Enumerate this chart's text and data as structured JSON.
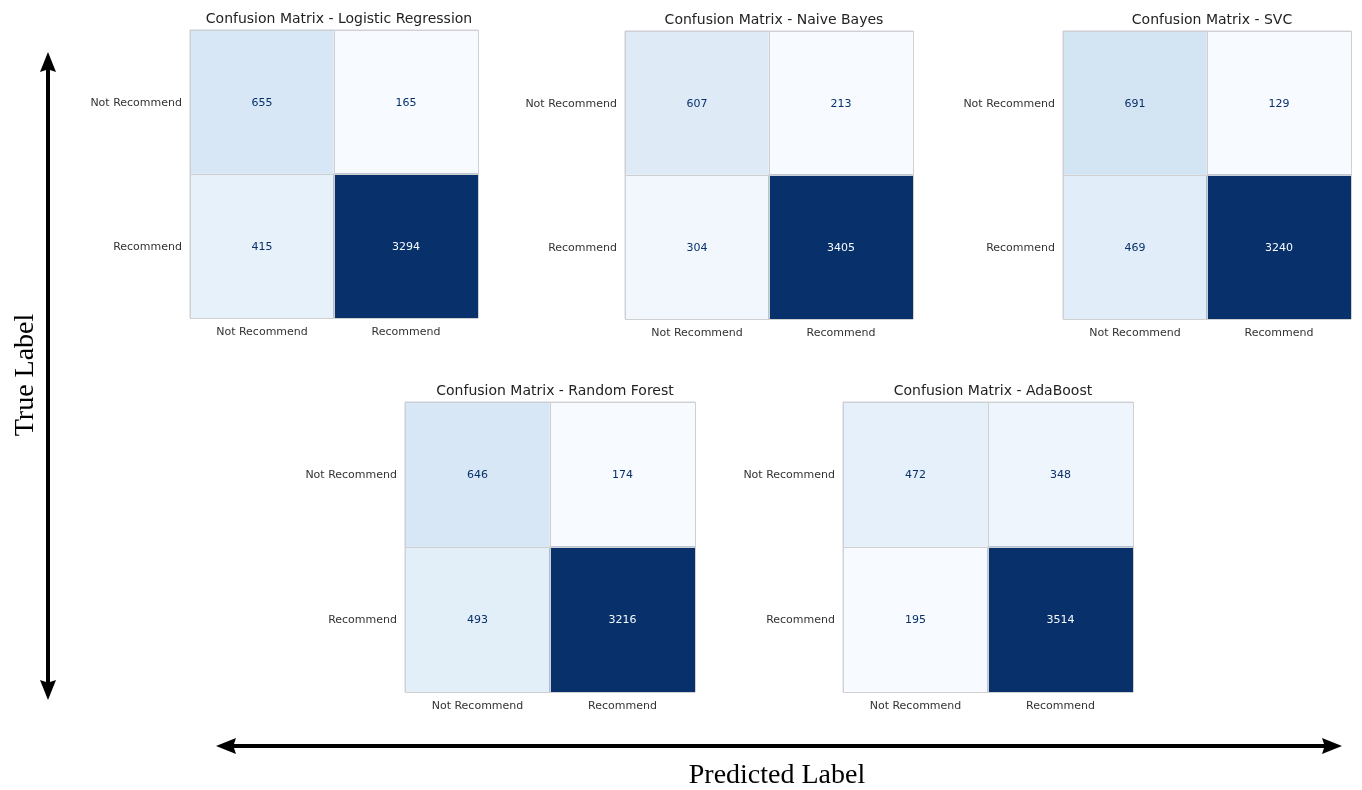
{
  "chart_data": [
    {
      "type": "heatmap",
      "title": "Confusion Matrix - Logistic Regression",
      "categories": [
        "Not Recommend",
        "Recommend"
      ],
      "y_categories": [
        "Not Recommend",
        "Recommend"
      ],
      "cells": [
        [
          655,
          165
        ],
        [
          415,
          3294
        ]
      ],
      "data_labels": true,
      "grid": true
    },
    {
      "type": "heatmap",
      "title": "Confusion Matrix - Naive Bayes",
      "categories": [
        "Not Recommend",
        "Recommend"
      ],
      "y_categories": [
        "Not Recommend",
        "Recommend"
      ],
      "cells": [
        [
          607,
          213
        ],
        [
          304,
          3405
        ]
      ],
      "data_labels": true,
      "grid": true
    },
    {
      "type": "heatmap",
      "title": "Confusion Matrix - SVC",
      "categories": [
        "Not Recommend",
        "Recommend"
      ],
      "y_categories": [
        "Not Recommend",
        "Recommend"
      ],
      "cells": [
        [
          691,
          129
        ],
        [
          469,
          3240
        ]
      ],
      "data_labels": true,
      "grid": true
    },
    {
      "type": "heatmap",
      "title": "Confusion Matrix - Random Forest",
      "categories": [
        "Not Recommend",
        "Recommend"
      ],
      "y_categories": [
        "Not Recommend",
        "Recommend"
      ],
      "cells": [
        [
          646,
          174
        ],
        [
          493,
          3216
        ]
      ],
      "data_labels": true,
      "grid": true
    },
    {
      "type": "heatmap",
      "title": "Confusion Matrix - AdaBoost",
      "categories": [
        "Not Recommend",
        "Recommend"
      ],
      "y_categories": [
        "Not Recommend",
        "Recommend"
      ],
      "cells": [
        [
          472,
          348
        ],
        [
          195,
          3514
        ]
      ],
      "data_labels": true,
      "grid": true
    },
    {
      "type": "other",
      "xlabel": "Predicted Label",
      "ylabel": "True Label"
    }
  ]
}
